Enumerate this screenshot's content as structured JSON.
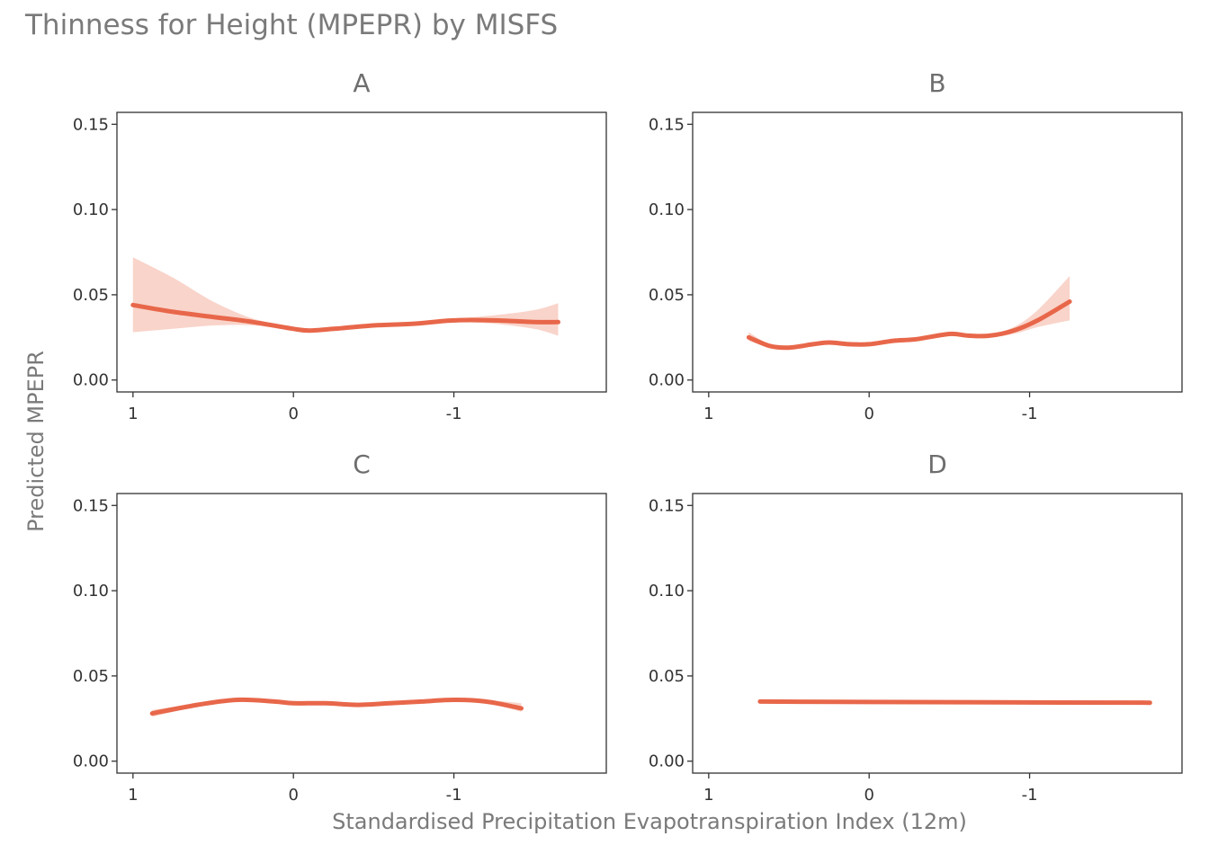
{
  "title": "Thinness for Height (MPEPR) by MISFS",
  "xlabel": "Standardised Precipitation Evapotranspiration Index (12m)",
  "ylabel": "Predicted MPEPR",
  "colors": {
    "line": "#e8674a",
    "ribbon": "#f7c5b8"
  },
  "chart_data": [
    {
      "type": "line",
      "panel": "A",
      "x_reversed": true,
      "xlim": [
        1.1,
        -1.95
      ],
      "ylim": [
        -0.007,
        0.157
      ],
      "x_ticks": [
        1,
        0,
        -1
      ],
      "x_tick_labels": [
        "1",
        "0",
        "-1"
      ],
      "y_ticks": [
        0,
        0.05,
        0.1,
        0.15
      ],
      "y_tick_labels": [
        "0.00",
        "0.05",
        "0.10",
        "0.15"
      ],
      "grid": false,
      "x": [
        1.0,
        0.75,
        0.5,
        0.25,
        0.0,
        -0.1,
        -0.25,
        -0.5,
        -0.75,
        -1.0,
        -1.25,
        -1.5,
        -1.65
      ],
      "y": [
        0.044,
        0.04,
        0.037,
        0.034,
        0.03,
        0.029,
        0.03,
        0.032,
        0.033,
        0.035,
        0.035,
        0.034,
        0.034
      ],
      "lower": [
        0.028,
        0.03,
        0.032,
        0.032,
        0.029,
        0.028,
        0.029,
        0.031,
        0.032,
        0.034,
        0.033,
        0.03,
        0.026
      ],
      "upper": [
        0.072,
        0.06,
        0.046,
        0.036,
        0.031,
        0.03,
        0.031,
        0.033,
        0.034,
        0.036,
        0.038,
        0.041,
        0.045
      ]
    },
    {
      "type": "line",
      "panel": "B",
      "x_reversed": true,
      "xlim": [
        1.1,
        -1.95
      ],
      "ylim": [
        -0.007,
        0.157
      ],
      "x_ticks": [
        1,
        0,
        -1
      ],
      "x_tick_labels": [
        "1",
        "0",
        "-1"
      ],
      "y_ticks": [
        0,
        0.05,
        0.1,
        0.15
      ],
      "y_tick_labels": [
        "0.00",
        "0.05",
        "0.10",
        "0.15"
      ],
      "grid": false,
      "x": [
        0.75,
        0.62,
        0.5,
        0.35,
        0.25,
        0.12,
        0.0,
        -0.15,
        -0.3,
        -0.5,
        -0.62,
        -0.75,
        -0.9,
        -1.05,
        -1.25
      ],
      "y": [
        0.025,
        0.02,
        0.019,
        0.021,
        0.022,
        0.021,
        0.021,
        0.023,
        0.024,
        0.027,
        0.026,
        0.026,
        0.029,
        0.035,
        0.046
      ],
      "lower": [
        0.023,
        0.019,
        0.018,
        0.02,
        0.021,
        0.02,
        0.02,
        0.022,
        0.023,
        0.026,
        0.025,
        0.025,
        0.027,
        0.031,
        0.035
      ],
      "upper": [
        0.028,
        0.021,
        0.02,
        0.022,
        0.023,
        0.022,
        0.022,
        0.024,
        0.025,
        0.028,
        0.027,
        0.027,
        0.031,
        0.041,
        0.061
      ]
    },
    {
      "type": "line",
      "panel": "C",
      "x_reversed": true,
      "xlim": [
        1.1,
        -1.95
      ],
      "ylim": [
        -0.007,
        0.157
      ],
      "x_ticks": [
        1,
        0,
        -1
      ],
      "x_tick_labels": [
        "1",
        "0",
        "-1"
      ],
      "y_ticks": [
        0,
        0.05,
        0.1,
        0.15
      ],
      "y_tick_labels": [
        "0.00",
        "0.05",
        "0.10",
        "0.15"
      ],
      "grid": false,
      "x": [
        0.88,
        0.6,
        0.35,
        0.12,
        0.0,
        -0.2,
        -0.4,
        -0.6,
        -0.8,
        -1.0,
        -1.2,
        -1.42
      ],
      "y": [
        0.028,
        0.033,
        0.036,
        0.035,
        0.034,
        0.034,
        0.033,
        0.034,
        0.035,
        0.036,
        0.035,
        0.031
      ],
      "lower": [
        0.026,
        0.032,
        0.035,
        0.034,
        0.033,
        0.033,
        0.032,
        0.033,
        0.034,
        0.035,
        0.034,
        0.029
      ],
      "upper": [
        0.03,
        0.034,
        0.037,
        0.036,
        0.035,
        0.035,
        0.034,
        0.035,
        0.036,
        0.037,
        0.036,
        0.034
      ]
    },
    {
      "type": "line",
      "panel": "D",
      "x_reversed": true,
      "xlim": [
        1.1,
        -1.95
      ],
      "ylim": [
        -0.007,
        0.157
      ],
      "x_ticks": [
        1,
        0,
        -1
      ],
      "x_tick_labels": [
        "1",
        "0",
        "-1"
      ],
      "y_ticks": [
        0,
        0.05,
        0.1,
        0.15
      ],
      "y_tick_labels": [
        "0.00",
        "0.05",
        "0.10",
        "0.15"
      ],
      "grid": false,
      "x": [
        0.68,
        0.0,
        -0.8,
        -1.75
      ],
      "y": [
        0.035,
        0.0347,
        0.0345,
        0.0343
      ],
      "lower": [
        0.034,
        0.0341,
        0.0339,
        0.0332
      ],
      "upper": [
        0.036,
        0.0353,
        0.0351,
        0.0354
      ]
    }
  ]
}
